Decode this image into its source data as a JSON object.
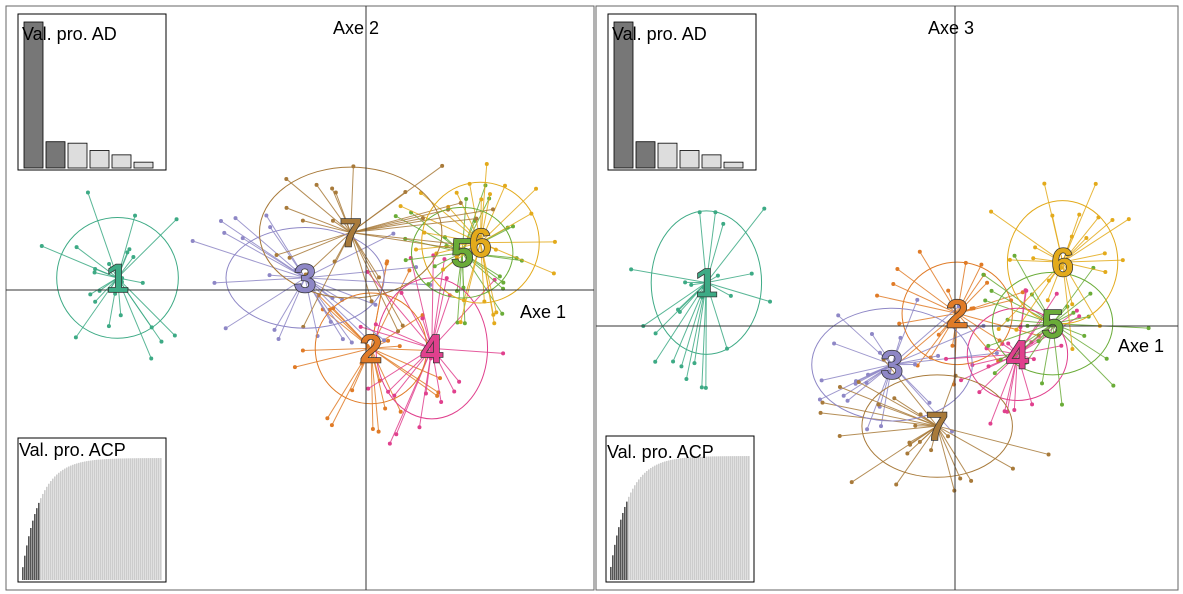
{
  "chart_data": [
    {
      "type": "scatter",
      "panel": "left",
      "xlabel": "Axe 1",
      "ylabel": "Axe 2",
      "xlim": [
        -3.6,
        2.2
      ],
      "ylim": [
        -3.0,
        2.8
      ],
      "groups": [
        {
          "label": "1",
          "color": "#3daa85",
          "cx": -2.5,
          "cy": 0.1,
          "rx": 0.6,
          "ry": 0.6
        },
        {
          "label": "2",
          "color": "#e07b27",
          "cx": 0.0,
          "cy": -0.6,
          "rx": 0.55,
          "ry": 0.55
        },
        {
          "label": "3",
          "color": "#8e87c6",
          "cx": -0.65,
          "cy": 0.1,
          "rx": 0.78,
          "ry": 0.5
        },
        {
          "label": "4",
          "color": "#e0408d",
          "cx": 0.6,
          "cy": -0.6,
          "rx": 0.55,
          "ry": 0.7
        },
        {
          "label": "5",
          "color": "#6aac38",
          "cx": 0.9,
          "cy": 0.35,
          "rx": 0.5,
          "ry": 0.45
        },
        {
          "label": "6",
          "color": "#e3aa1b",
          "cx": 1.08,
          "cy": 0.45,
          "rx": 0.58,
          "ry": 0.6
        },
        {
          "label": "7",
          "color": "#a87a3a",
          "cx": -0.2,
          "cy": 0.55,
          "rx": 0.9,
          "ry": 0.65
        }
      ],
      "inset_ad": {
        "title": "Val. pro. AD",
        "position": "top-left",
        "values": [
          1.0,
          0.18,
          0.17,
          0.12,
          0.09,
          0.04
        ],
        "highlighted": 2
      },
      "inset_acp": {
        "title": "Val. pro. ACP",
        "position": "bottom-left"
      }
    },
    {
      "type": "scatter",
      "panel": "right",
      "xlabel": "Axe 1",
      "ylabel": "Axe 3",
      "xlim": [
        -3.6,
        2.2
      ],
      "ylim": [
        -2.6,
        3.1
      ],
      "groups": [
        {
          "label": "1",
          "color": "#3daa85",
          "cx": -2.5,
          "cy": 0.4,
          "rx": 0.55,
          "ry": 0.7
        },
        {
          "label": "2",
          "color": "#e07b27",
          "cx": 0.0,
          "cy": 0.1,
          "rx": 0.55,
          "ry": 0.5
        },
        {
          "label": "3",
          "color": "#8e87c6",
          "cx": -0.65,
          "cy": -0.4,
          "rx": 0.8,
          "ry": 0.55
        },
        {
          "label": "4",
          "color": "#e0408d",
          "cx": 0.6,
          "cy": -0.3,
          "rx": 0.5,
          "ry": 0.45
        },
        {
          "label": "5",
          "color": "#6aac38",
          "cx": 0.95,
          "cy": 0.0,
          "rx": 0.6,
          "ry": 0.5
        },
        {
          "label": "6",
          "color": "#e3aa1b",
          "cx": 1.05,
          "cy": 0.6,
          "rx": 0.55,
          "ry": 0.6
        },
        {
          "label": "7",
          "color": "#a87a3a",
          "cx": -0.2,
          "cy": -1.0,
          "rx": 0.75,
          "ry": 0.5
        }
      ],
      "inset_ad": {
        "title": "Val. pro. AD",
        "position": "top-left",
        "values": [
          1.0,
          0.18,
          0.17,
          0.12,
          0.09,
          0.04
        ],
        "highlighted": 2
      },
      "inset_acp": {
        "title": "Val. pro. ACP",
        "position": "bottom-left"
      }
    }
  ]
}
